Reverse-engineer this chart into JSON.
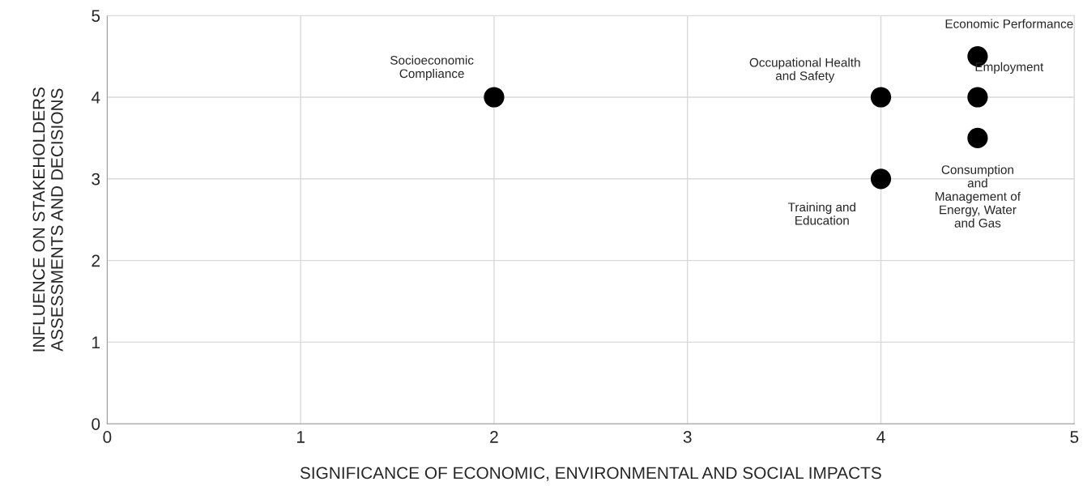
{
  "chart_data": {
    "type": "scatter",
    "xlabel": "SIGNIFICANCE OF ECONOMIC, ENVIRONMENTAL AND SOCIAL IMPACTS",
    "ylabel": "INFLUENCE ON STAKEHOLDERS\nASSESSMENTS AND DECISIONS",
    "x": [
      2,
      4,
      4.5,
      4.5,
      4.5,
      4
    ],
    "values": [
      4,
      4,
      4.5,
      4,
      3.5,
      3
    ],
    "color": "#000000",
    "marker": "circle",
    "xlim": [
      0,
      5
    ],
    "ylim": [
      0,
      5
    ],
    "xticks": [
      0,
      1,
      2,
      3,
      4,
      5
    ],
    "yticks": [
      0,
      1,
      2,
      3,
      4,
      5
    ],
    "grid": true,
    "annotations": [
      {
        "text": "Socioeconomic\nCompliance",
        "x": 2,
        "y": 4
      },
      {
        "text": "Occupational Health\nand Safety",
        "x": 4,
        "y": 4
      },
      {
        "text": "Economic Performance",
        "x": 4.5,
        "y": 4.5
      },
      {
        "text": "Employment",
        "x": 4.5,
        "y": 4
      },
      {
        "text": "Consumption\nand\nManagement of\nEnergy, Water\nand Gas",
        "x": 4.5,
        "y": 3.5
      },
      {
        "text": "Training and\nEducation",
        "x": 4,
        "y": 3
      }
    ]
  }
}
